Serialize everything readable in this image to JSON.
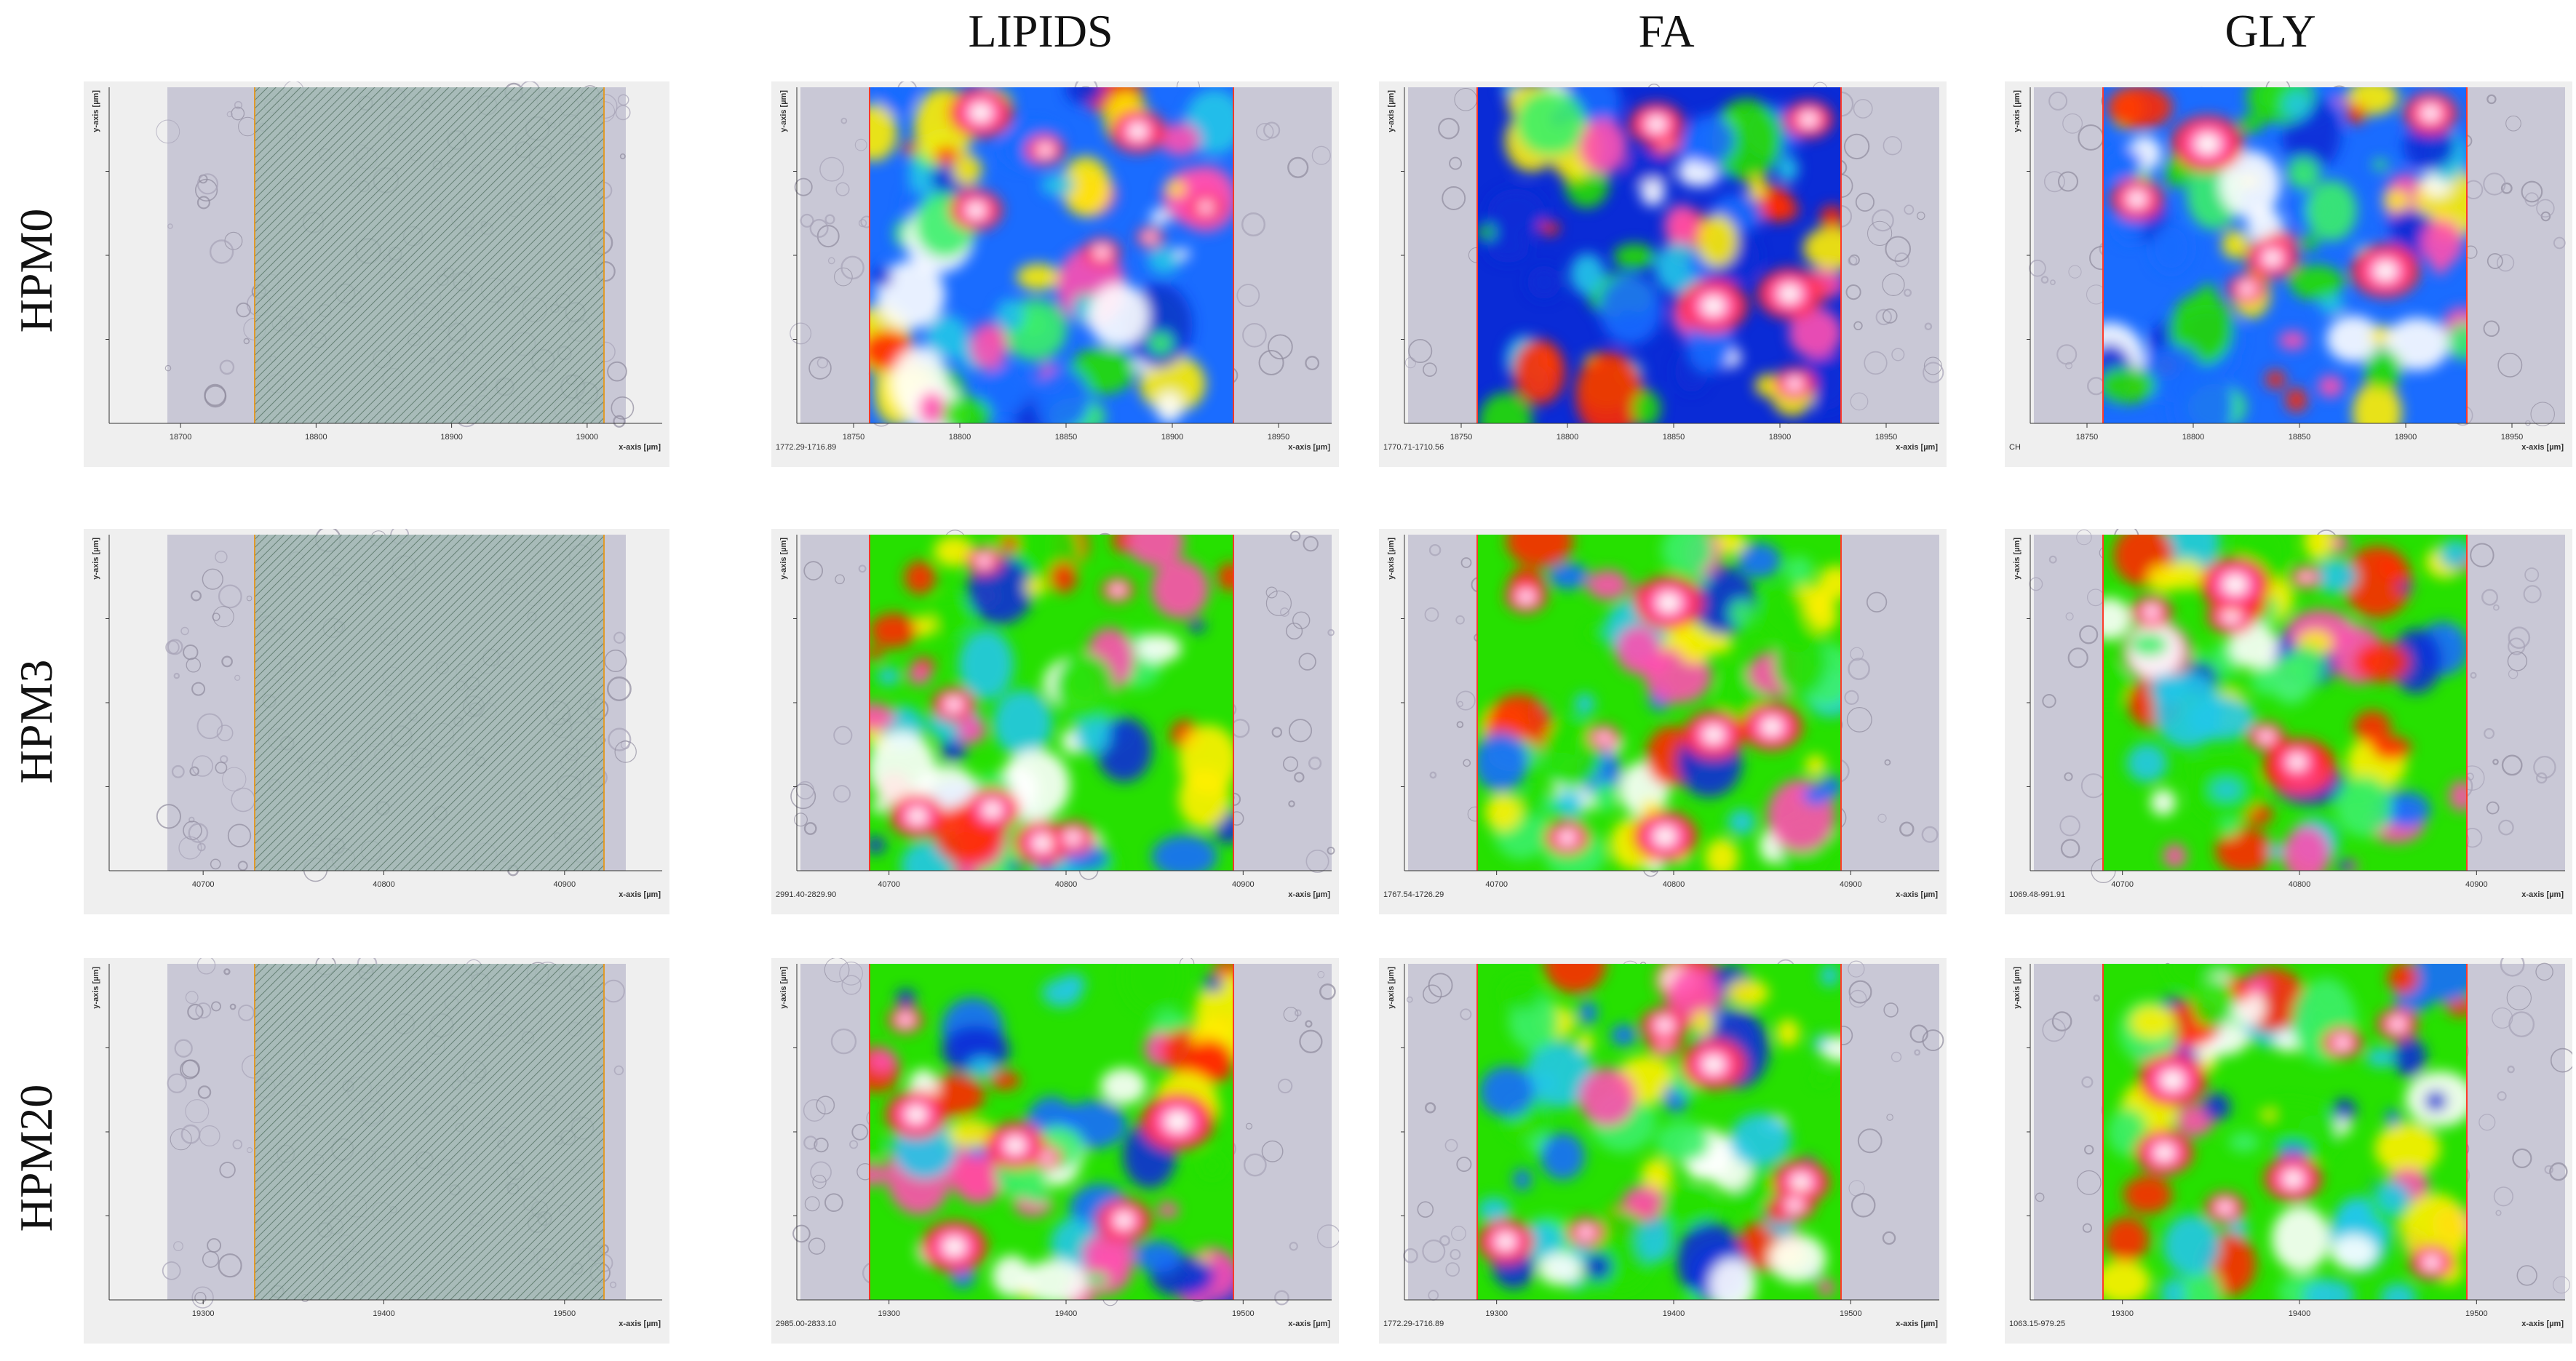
{
  "columns": [
    "LIPIDS",
    "FA",
    "GLY"
  ],
  "rows": [
    {
      "label": "HPM0",
      "micrograph": {
        "ticks": [
          "18700",
          "18800",
          "18900",
          "19000"
        ],
        "xaxis": "x-axis [µm]",
        "yaxis": "y-axis [µm]"
      },
      "maps": [
        {
          "ticks": [
            "18750",
            "18800",
            "18850",
            "18900",
            "18950"
          ],
          "range": "1772.29-1716.89",
          "xaxis": "x-axis [µm]"
        },
        {
          "ticks": [
            "18750",
            "18800",
            "18850",
            "18900",
            "18950"
          ],
          "range": "1770.71-1710.56",
          "xaxis": "x-axis [µm]"
        },
        {
          "ticks": [
            "18750",
            "18800",
            "18850",
            "18900",
            "18950"
          ],
          "range": "CH",
          "xaxis": "x-axis [µm]"
        }
      ]
    },
    {
      "label": "HPM3",
      "micrograph": {
        "ticks": [
          "40700",
          "40800",
          "40900"
        ],
        "xaxis": "x-axis [µm]",
        "yaxis": "y-axis [µm]"
      },
      "maps": [
        {
          "ticks": [
            "40700",
            "40800",
            "40900"
          ],
          "range": "2991.40-2829.90",
          "xaxis": "x-axis [µm]"
        },
        {
          "ticks": [
            "40700",
            "40800",
            "40900"
          ],
          "range": "1767.54-1726.29",
          "xaxis": "x-axis [µm]"
        },
        {
          "ticks": [
            "40700",
            "40800",
            "40900"
          ],
          "range": "1069.48-991.91",
          "xaxis": "x-axis [µm]"
        }
      ]
    },
    {
      "label": "HPM20",
      "micrograph": {
        "ticks": [
          "19300",
          "19400",
          "19500"
        ],
        "xaxis": "x-axis [µm]",
        "yaxis": "y-axis [µm]"
      },
      "maps": [
        {
          "ticks": [
            "19300",
            "19400",
            "19500"
          ],
          "range": "2985.00-2833.10",
          "xaxis": "x-axis [µm]"
        },
        {
          "ticks": [
            "19300",
            "19400",
            "19500"
          ],
          "range": "1772.29-1716.89",
          "xaxis": "x-axis [µm]"
        },
        {
          "ticks": [
            "19300",
            "19400",
            "19500"
          ],
          "range": "1063.15-979.25",
          "xaxis": "x-axis [µm]"
        }
      ]
    }
  ],
  "colors": {
    "heatmap_scale": [
      "#0a2bd6",
      "#1a6cff",
      "#22c6e8",
      "#3cf06a",
      "#26e000",
      "#ffef00",
      "#ff2a00",
      "#ff4fb0",
      "#ffffff"
    ],
    "micrograph_tint": "#9fb8b2",
    "photo_bg": "#c9c8d6",
    "border_marker": "#e09a2a"
  }
}
